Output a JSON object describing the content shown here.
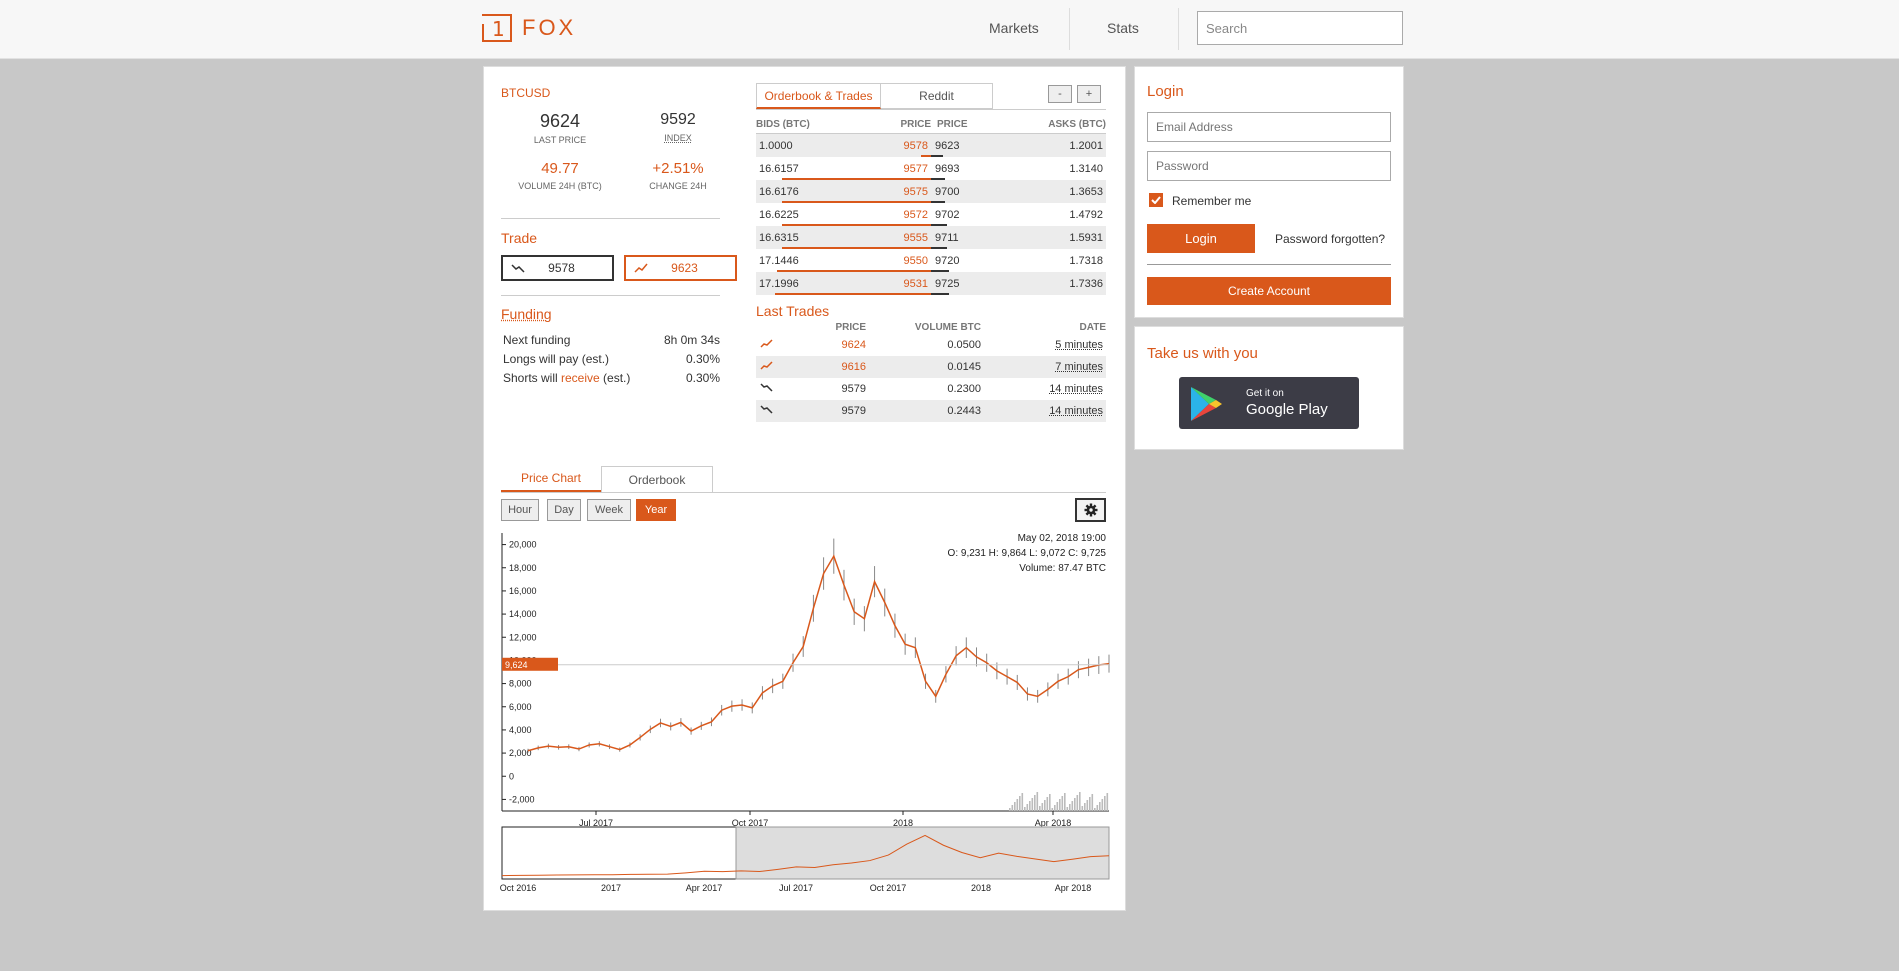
{
  "app": {
    "logo_mark": "1",
    "logo_text": "FOX"
  },
  "nav": {
    "markets": "Markets",
    "stats": "Stats",
    "search_placeholder": "Search"
  },
  "ticker": {
    "symbol": "BTCUSD",
    "last_price": "9624",
    "last_price_label": "LAST PRICE",
    "index": "9592",
    "index_label": "INDEX",
    "volume": "49.77",
    "volume_label": "VOLUME 24H (BTC)",
    "change": "+2.51%",
    "change_label": "CHANGE 24H"
  },
  "trade": {
    "title": "Trade",
    "sell_price": "9578",
    "buy_price": "9623"
  },
  "funding": {
    "title": "Funding",
    "rows": [
      {
        "label": "Next funding",
        "value": "8h 0m 34s"
      },
      {
        "label": "Longs will pay (est.)",
        "value": "0.30%"
      },
      {
        "label_pre": "Shorts will ",
        "label_hl": "receive",
        "label_post": " (est.)",
        "value": "0.30%"
      }
    ]
  },
  "orderbook": {
    "tab_active": "Orderbook & Trades",
    "tab_other": "Reddit",
    "minus": "-",
    "plus": "+",
    "headers": [
      "BIDS (BTC)",
      "PRICE",
      "PRICE",
      "ASKS (BTC)"
    ],
    "rows": [
      {
        "bid": "1.0000",
        "bid_price": "9578",
        "ask_price": "9623",
        "ask": "1.2001",
        "bid_depth": 0.06,
        "ask_depth": 0.07
      },
      {
        "bid": "16.6157",
        "bid_price": "9577",
        "ask_price": "9693",
        "ask": "1.3140",
        "bid_depth": 0.85,
        "ask_depth": 0.08
      },
      {
        "bid": "16.6176",
        "bid_price": "9575",
        "ask_price": "9700",
        "ask": "1.3653",
        "bid_depth": 0.85,
        "ask_depth": 0.08
      },
      {
        "bid": "16.6225",
        "bid_price": "9572",
        "ask_price": "9702",
        "ask": "1.4792",
        "bid_depth": 0.85,
        "ask_depth": 0.09
      },
      {
        "bid": "16.6315",
        "bid_price": "9555",
        "ask_price": "9711",
        "ask": "1.5931",
        "bid_depth": 0.85,
        "ask_depth": 0.09
      },
      {
        "bid": "17.1446",
        "bid_price": "9550",
        "ask_price": "9720",
        "ask": "1.7318",
        "bid_depth": 0.88,
        "ask_depth": 0.1
      },
      {
        "bid": "17.1996",
        "bid_price": "9531",
        "ask_price": "9725",
        "ask": "1.7336",
        "bid_depth": 0.89,
        "ask_depth": 0.1
      }
    ]
  },
  "last_trades": {
    "title": "Last Trades",
    "headers": [
      "PRICE",
      "VOLUME BTC",
      "DATE"
    ],
    "rows": [
      {
        "dir": "up",
        "price": "9624",
        "volume": "0.0500",
        "date": "5 minutes"
      },
      {
        "dir": "up",
        "price": "9616",
        "volume": "0.0145",
        "date": "7 minutes"
      },
      {
        "dir": "down",
        "price": "9579",
        "volume": "0.2300",
        "date": "14 minutes"
      },
      {
        "dir": "down",
        "price": "9579",
        "volume": "0.2443",
        "date": "14 minutes"
      }
    ]
  },
  "chart_tabs": {
    "active": "Price Chart",
    "other": "Orderbook"
  },
  "ranges": [
    "Hour",
    "Day",
    "Week",
    "Year"
  ],
  "active_range": "Year",
  "chart_data": {
    "type": "line",
    "yticks": [
      "20,000",
      "18,000",
      "16,000",
      "14,000",
      "12,000",
      "10,000",
      "8,000",
      "6,000",
      "4,000",
      "2,000",
      "0",
      "-2,000"
    ],
    "xticks": [
      "Jul 2017",
      "Oct 2017",
      "2018",
      "Apr 2018"
    ],
    "nav_xticks": [
      "Oct 2016",
      "2017",
      "Apr 2017",
      "Jul 2017",
      "Oct 2017",
      "2018",
      "Apr 2018"
    ],
    "ylim": [
      -3000,
      21000
    ],
    "current_price": "9,624",
    "info": {
      "date": "May 02, 2018 19:00",
      "ohlc": "O: 9,231  H: 9,864  L: 9,072  C: 9,725",
      "volume": "Volume: 87.47 BTC"
    },
    "series": [
      {
        "values": [
          2200,
          2450,
          2600,
          2500,
          2550,
          2350,
          2700,
          2800,
          2550,
          2300,
          2700,
          3350,
          4050,
          4600,
          4300,
          4650,
          3900,
          4350,
          4700,
          5700,
          6050,
          6150,
          5900,
          7200,
          7800,
          8200,
          9800,
          11200,
          14500,
          17500,
          19000,
          16500,
          14200,
          13600,
          16800,
          15000,
          13000,
          11400,
          11100,
          8200,
          6900,
          8800,
          10400,
          11100,
          10300,
          9800,
          9100,
          8600,
          8100,
          7100,
          6900,
          7500,
          8200,
          8600,
          9200,
          9400,
          9600,
          9720
        ]
      }
    ],
    "nav_series": [
      {
        "values": [
          650,
          720,
          800,
          900,
          960,
          1000,
          1050,
          1200,
          1250,
          1300,
          1900,
          2600,
          2450,
          2800,
          2500,
          3500,
          4600,
          4350,
          5600,
          6400,
          7500,
          10000,
          15000,
          19000,
          14500,
          11200,
          8800,
          10900,
          9400,
          8200,
          7000,
          8100,
          9300,
          9700
        ]
      }
    ]
  },
  "login": {
    "title": "Login",
    "email_placeholder": "Email Address",
    "password_placeholder": "Password",
    "remember": "Remember me",
    "login_btn": "Login",
    "forgot": "Password forgotten?",
    "create": "Create Account"
  },
  "store": {
    "title": "Take us with you",
    "get_it_on": "Get it on",
    "store_name": "Google Play"
  }
}
